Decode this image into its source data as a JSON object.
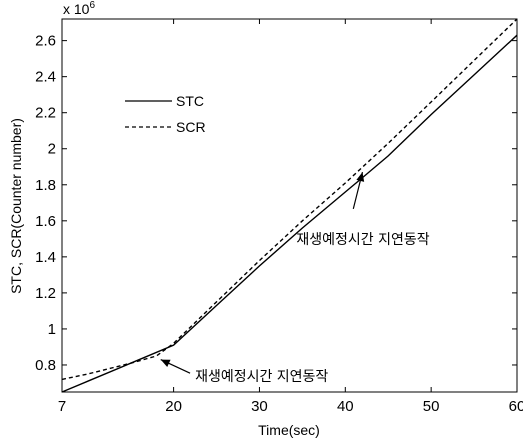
{
  "chart_data": {
    "type": "line",
    "title": "",
    "xlabel": "Time(sec)",
    "ylabel": "STC, SCR(Counter number)",
    "xlim": [
      7,
      60
    ],
    "ylim": [
      0.65,
      2.72
    ],
    "xticks": [
      7,
      20,
      30,
      40,
      50,
      60
    ],
    "yticks": [
      0.8,
      1,
      1.2,
      1.4,
      1.6,
      1.8,
      2,
      2.2,
      2.4,
      2.6
    ],
    "ytick_labels": [
      "0.8",
      "1",
      "1.2",
      "1.4",
      "1.6",
      "1.8",
      "2",
      "2.2",
      "2.4",
      "2.6"
    ],
    "y_multiplier_base": "x 10",
    "y_multiplier_exp": "6",
    "grid": false,
    "legend_position": "top-left",
    "series": [
      {
        "name": "STC",
        "style": "solid",
        "x": [
          7,
          10,
          15,
          20,
          25,
          30,
          35,
          40,
          42,
          45,
          50,
          55,
          60
        ],
        "y": [
          0.65,
          0.71,
          0.81,
          0.91,
          1.13,
          1.35,
          1.56,
          1.76,
          1.84,
          1.96,
          2.19,
          2.41,
          2.63
        ]
      },
      {
        "name": "SCR",
        "style": "dashed",
        "x": [
          7,
          10,
          15,
          18,
          20,
          25,
          30,
          35,
          40,
          45,
          50,
          55,
          60
        ],
        "y": [
          0.72,
          0.75,
          0.81,
          0.85,
          0.92,
          1.15,
          1.38,
          1.6,
          1.81,
          2.03,
          2.26,
          2.49,
          2.72
        ]
      }
    ],
    "annotations": [
      {
        "text": "재생예정시간 지연동작",
        "point_x": 18.5,
        "point_y": 0.83,
        "label_x": 22.5,
        "label_y": 0.738
      },
      {
        "text": "재생예정시간 지연동작",
        "point_x": 42,
        "point_y": 1.87,
        "label_x": 40,
        "label_y": 1.5
      }
    ]
  }
}
